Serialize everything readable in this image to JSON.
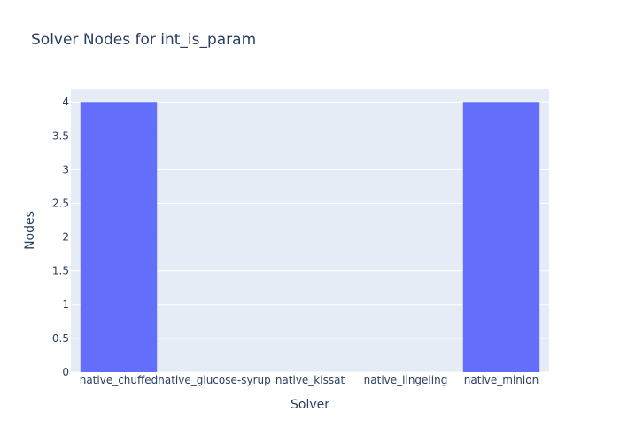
{
  "chart_data": {
    "type": "bar",
    "title": "Solver Nodes for int_is_param",
    "xlabel": "Solver",
    "ylabel": "Nodes",
    "categories": [
      "native_chuffed",
      "native_glucose-syrup",
      "native_kissat",
      "native_lingeling",
      "native_minion"
    ],
    "values": [
      4,
      0,
      0,
      0,
      4
    ],
    "ylim": [
      0,
      4.2
    ],
    "yticks": [
      0,
      0.5,
      1,
      1.5,
      2,
      2.5,
      3,
      3.5,
      4
    ],
    "ytick_labels": [
      "0",
      "0.5",
      "1",
      "1.5",
      "2",
      "2.5",
      "3",
      "3.5",
      "4"
    ],
    "grid": true,
    "legend": false
  },
  "colors": {
    "bar": "#636efa",
    "plot_bg": "#e5ecf6",
    "grid": "#ffffff",
    "text": "#2a3f5f",
    "page_bg": "#ffffff"
  }
}
